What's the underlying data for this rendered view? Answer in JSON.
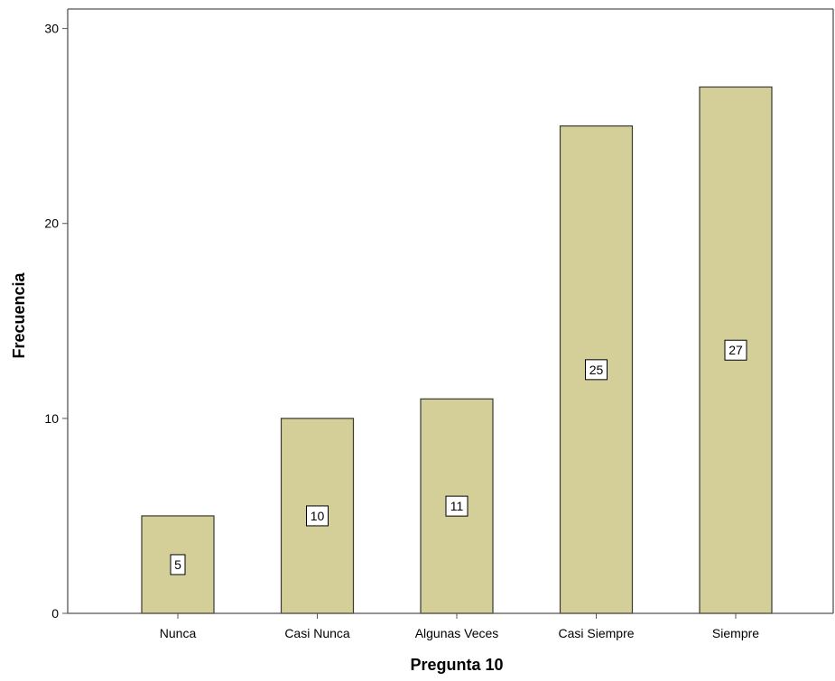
{
  "chart_data": {
    "type": "bar",
    "categories": [
      "Nunca",
      "Casi Nunca",
      "Algunas Veces",
      "Casi Siempre",
      "Siempre"
    ],
    "values": [
      5,
      10,
      11,
      25,
      27
    ],
    "data_labels": [
      "5",
      "10",
      "11",
      "25",
      "27"
    ],
    "xlabel": "Pregunta 10",
    "ylabel": "Frecuencia",
    "ylim": [
      0,
      31
    ],
    "yticks": [
      0,
      10,
      20,
      30
    ],
    "grid": false,
    "legend": "none"
  },
  "colors": {
    "bar_fill": "#d4cf99",
    "bar_stroke": "#3a3a2e",
    "axis": "#555555",
    "label_box": "#ffffff"
  }
}
